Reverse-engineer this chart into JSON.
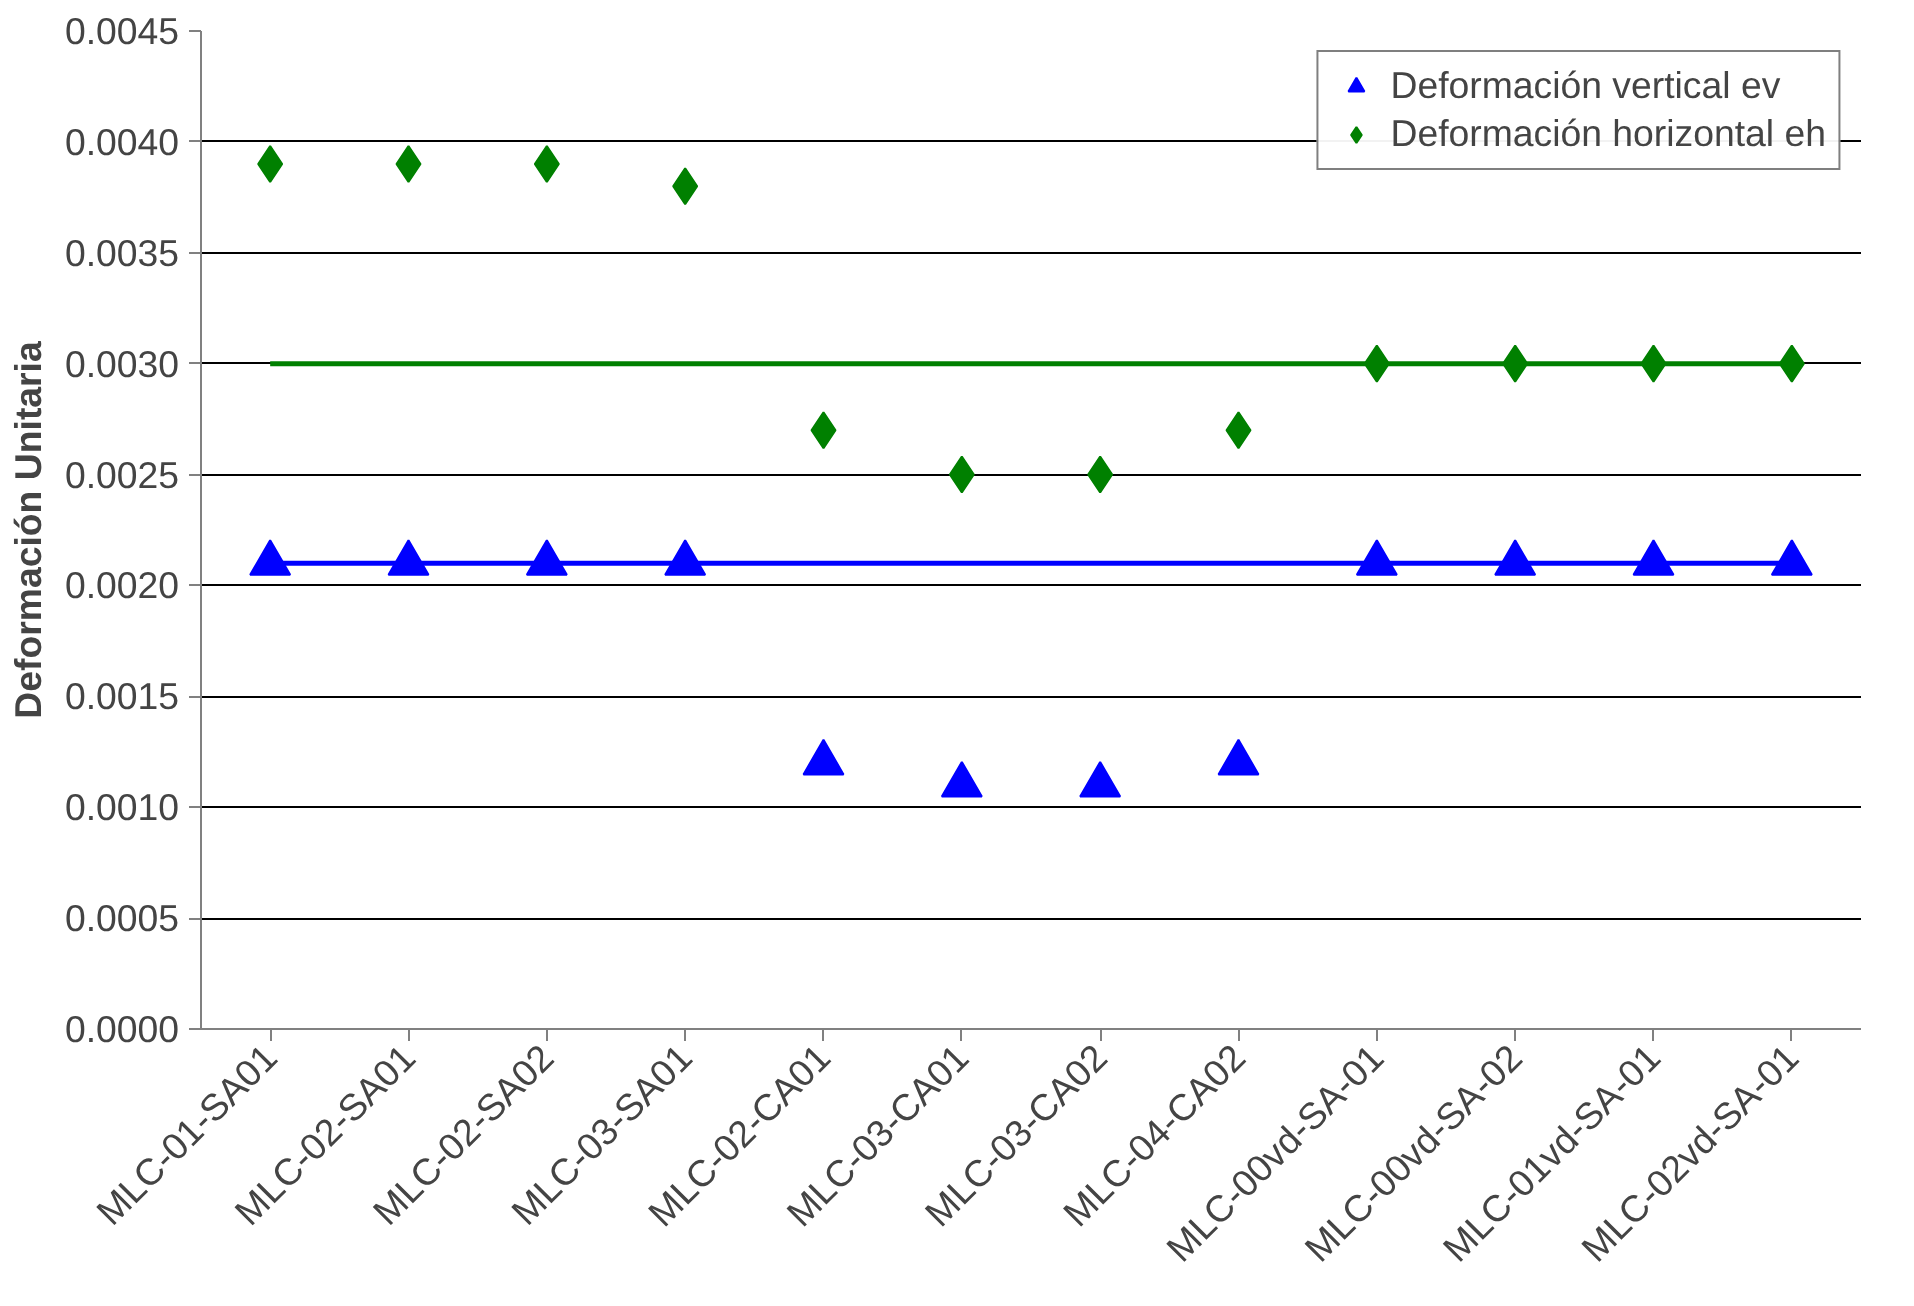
{
  "chart_data": {
    "type": "scatter",
    "ylabel": "Deformación Unitaria",
    "categories": [
      "MLC-01-SA01",
      "MLC-02-SA01",
      "MLC-02-SA02",
      "MLC-03-SA01",
      "MLC-02-CA01",
      "MLC-03-CA01",
      "MLC-03-CA02",
      "MLC-04-CA02",
      "MLC-00vd-SA-01",
      "MLC-00vd-SA-02",
      "MLC-01vd-SA-01",
      "MLC-02vd-SA-01"
    ],
    "series": [
      {
        "name": "Deformación vertical ev",
        "color": "#0000ff",
        "marker": "triangle",
        "values": [
          0.0021,
          0.0021,
          0.0021,
          0.0021,
          0.0012,
          0.0011,
          0.0011,
          0.0012,
          0.0021,
          0.0021,
          0.0021,
          0.0021
        ]
      },
      {
        "name": "Deformación horizontal eh",
        "color": "#008000",
        "marker": "diamond",
        "values": [
          0.0039,
          0.0039,
          0.0039,
          0.0038,
          0.0027,
          0.0025,
          0.0025,
          0.0027,
          0.003,
          0.003,
          0.003,
          0.003
        ]
      },
      {
        "type": "line",
        "color": "#0000ff",
        "marker": "none",
        "values": [
          0.0021,
          0.0021,
          0.0021,
          0.0021,
          0.0021,
          0.0021,
          0.0021,
          0.0021,
          0.0021,
          0.0021,
          0.0021,
          0.0021
        ]
      },
      {
        "type": "line",
        "color": "#008000",
        "marker": "none",
        "values": [
          0.003,
          0.003,
          0.003,
          0.003,
          0.003,
          0.003,
          0.003,
          0.003,
          0.003,
          0.003,
          0.003,
          0.003
        ]
      }
    ],
    "ylim": [
      0,
      0.0045
    ],
    "yticks": [
      {
        "value": 0,
        "label": "0.0000"
      },
      {
        "value": 0.0005,
        "label": "0.0005"
      },
      {
        "value": 0.001,
        "label": "0.0010"
      },
      {
        "value": 0.0015,
        "label": "0.0015"
      },
      {
        "value": 0.002,
        "label": "0.0020"
      },
      {
        "value": 0.0025,
        "label": "0.0025"
      },
      {
        "value": 0.003,
        "label": "0.0030"
      },
      {
        "value": 0.0035,
        "label": "0.0035"
      },
      {
        "value": 0.004,
        "label": "0.0040"
      },
      {
        "value": 0.0045,
        "label": "0.0045"
      }
    ],
    "grid": "y",
    "legend": "top right"
  }
}
